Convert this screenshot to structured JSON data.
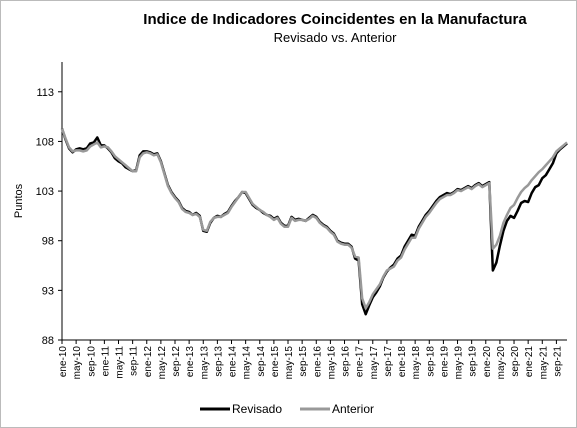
{
  "chart_data": {
    "type": "line",
    "title": "Indice de Indicadores Coincidentes en la Manufactura",
    "subtitle": "Revisado vs. Anterior",
    "y_label": "Puntos",
    "ylim": [
      88,
      116
    ],
    "yticks": [
      88,
      93,
      98,
      103,
      108,
      113
    ],
    "legend": "bottom",
    "categories": [
      "ene-10",
      null,
      null,
      null,
      "may-10",
      null,
      null,
      null,
      "sep-10",
      null,
      null,
      null,
      "ene-11",
      null,
      null,
      null,
      "may-11",
      null,
      null,
      null,
      "sep-11",
      null,
      null,
      null,
      "ene-12",
      null,
      null,
      null,
      "may-12",
      null,
      null,
      null,
      "sep-12",
      null,
      null,
      null,
      "ene-13",
      null,
      null,
      null,
      "may-13",
      null,
      null,
      null,
      "sep-13",
      null,
      null,
      null,
      "ene-14",
      null,
      null,
      null,
      "may-14",
      null,
      null,
      null,
      "sep-14",
      null,
      null,
      null,
      "ene-15",
      null,
      null,
      null,
      "may-15",
      null,
      null,
      null,
      "sep-15",
      null,
      null,
      null,
      "ene-16",
      null,
      null,
      null,
      "may-16",
      null,
      null,
      null,
      "sep-16",
      null,
      null,
      null,
      "ene-17",
      null,
      null,
      null,
      "may-17",
      null,
      null,
      null,
      "sep-17",
      null,
      null,
      null,
      "ene-18",
      null,
      null,
      null,
      "may-18",
      null,
      null,
      null,
      "sep-18",
      null,
      null,
      null,
      "ene-19",
      null,
      null,
      null,
      "may-19",
      null,
      null,
      null,
      "sep-19",
      null,
      null,
      null,
      "ene-20",
      null,
      null,
      null,
      "may-20",
      null,
      null,
      null,
      "sep-20",
      null,
      null,
      null,
      "ene-21",
      null,
      null,
      null,
      "may-21",
      null,
      null,
      null,
      "sep-21",
      null,
      null,
      null
    ],
    "series": [
      {
        "name": "Revisado",
        "color": "#000000",
        "values": [
          109.3,
          108.2,
          107.3,
          106.9,
          107.2,
          107.3,
          107.2,
          107.3,
          107.8,
          107.9,
          108.4,
          107.6,
          107.6,
          107.3,
          106.9,
          106.3,
          106,
          105.8,
          105.4,
          105.2,
          105,
          105.1,
          106.6,
          107,
          107,
          106.9,
          106.7,
          106.8,
          106,
          104.8,
          103.6,
          102.9,
          102.4,
          102,
          101.3,
          101,
          100.9,
          100.6,
          100.8,
          100.5,
          99,
          98.9,
          99.8,
          100.3,
          100.5,
          100.4,
          100.7,
          100.9,
          101.5,
          102,
          102.4,
          102.9,
          102.8,
          102.2,
          101.6,
          101.3,
          101.1,
          100.8,
          100.6,
          100.5,
          100.2,
          100.4,
          99.8,
          99.5,
          99.5,
          100.4,
          100.1,
          100.2,
          100.1,
          100,
          100.3,
          100.6,
          100.4,
          99.9,
          99.6,
          99.4,
          99,
          98.7,
          98,
          97.8,
          97.7,
          97.7,
          97.4,
          96.2,
          96,
          91.6,
          90.6,
          91.5,
          92.3,
          92.8,
          93.4,
          94.3,
          94.9,
          95.3,
          95.6,
          96.2,
          96.5,
          97.4,
          98,
          98.6,
          98.5,
          99.4,
          100,
          100.6,
          101,
          101.5,
          102,
          102.4,
          102.6,
          102.8,
          102.7,
          102.9,
          103.2,
          103.1,
          103.3,
          103.5,
          103.3,
          103.6,
          103.8,
          103.5,
          103.7,
          103.9,
          95,
          95.8,
          97.5,
          99,
          100,
          100.5,
          100.3,
          101,
          101.8,
          102,
          101.9,
          102.8,
          103.4,
          103.6,
          104.3,
          104.6,
          105.2,
          105.8,
          106.8,
          107.2,
          107.5,
          107.8
        ]
      },
      {
        "name": "Anterior",
        "color": "#999999",
        "values": [
          109.3,
          108.3,
          107.4,
          107,
          107.1,
          107.1,
          107,
          107.1,
          107.5,
          107.7,
          107.9,
          107.4,
          107.5,
          107.4,
          107,
          106.5,
          106.2,
          105.9,
          105.6,
          105.3,
          105,
          105,
          106.4,
          106.8,
          106.9,
          106.8,
          106.6,
          106.7,
          105.9,
          104.7,
          103.5,
          102.8,
          102.3,
          101.9,
          101.2,
          100.9,
          100.8,
          100.6,
          100.7,
          100.4,
          99.1,
          99,
          99.9,
          100.3,
          100.4,
          100.4,
          100.6,
          100.8,
          101.4,
          101.9,
          102.4,
          102.9,
          102.9,
          102.3,
          101.7,
          101.4,
          101.1,
          100.9,
          100.6,
          100.4,
          100.1,
          100.3,
          99.7,
          99.4,
          99.4,
          100.3,
          100,
          100.1,
          100.1,
          100,
          100.2,
          100.5,
          100.3,
          99.8,
          99.5,
          99.3,
          98.9,
          98.6,
          97.9,
          97.7,
          97.6,
          97.6,
          97.3,
          96.4,
          96.3,
          92.2,
          91.2,
          91.8,
          92.6,
          93.1,
          93.6,
          94.4,
          95,
          95.2,
          95.4,
          96,
          96.3,
          97.1,
          97.7,
          98.3,
          98.3,
          99.2,
          99.8,
          100.4,
          100.8,
          101.3,
          101.8,
          102.2,
          102.4,
          102.6,
          102.6,
          102.8,
          103.1,
          103,
          103.2,
          103.4,
          103.2,
          103.5,
          103.7,
          103.4,
          103.6,
          103.8,
          97.2,
          97.6,
          98.5,
          99.8,
          100.6,
          101.3,
          101.6,
          102.3,
          102.9,
          103.3,
          103.6,
          104.1,
          104.5,
          104.9,
          105.2,
          105.6,
          106,
          106.4,
          107,
          107.3,
          107.6,
          107.9
        ]
      }
    ]
  }
}
